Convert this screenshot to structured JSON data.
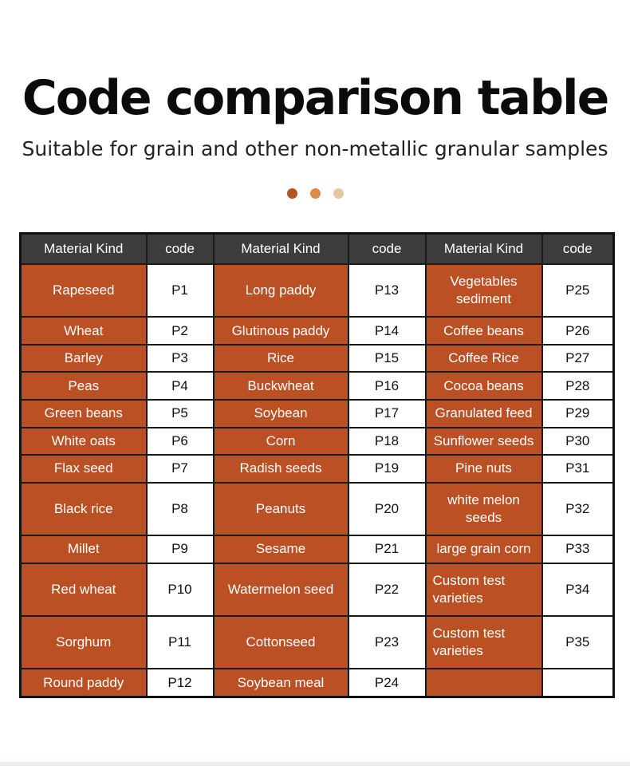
{
  "title": "Code comparison table",
  "subtitle": "Suitable for grain and other non-metallic granular samples",
  "dots": [
    "#b5531f",
    "#df8a46",
    "#e3c6a1"
  ],
  "colors": {
    "header_bg": "#3d3d3d",
    "kind_bg": "#bb5024",
    "code_bg": "#ffffff"
  },
  "table": {
    "headers": [
      "Material Kind",
      "code",
      "Material Kind",
      "code",
      "Material Kind",
      "code"
    ],
    "rows": [
      [
        "Rapeseed",
        "P1",
        "Long paddy",
        "P13",
        "Vegetables sediment",
        "P25"
      ],
      [
        "Wheat",
        "P2",
        "Glutinous paddy",
        "P14",
        "Coffee beans",
        "P26"
      ],
      [
        "Barley",
        "P3",
        "Rice",
        "P15",
        "Coffee Rice",
        "P27"
      ],
      [
        "Peas",
        "P4",
        "Buckwheat",
        "P16",
        "Cocoa beans",
        "P28"
      ],
      [
        "Green beans",
        "P5",
        "Soybean",
        "P17",
        "Granulated feed",
        "P29"
      ],
      [
        "White oats",
        "P6",
        "Corn",
        "P18",
        "Sunflower seeds",
        "P30"
      ],
      [
        "Flax seed",
        "P7",
        "Radish seeds",
        "P19",
        "Pine nuts",
        "P31"
      ],
      [
        "Black rice",
        "P8",
        "Peanuts",
        "P20",
        "white melon seeds",
        "P32"
      ],
      [
        "Millet",
        "P9",
        "Sesame",
        "P21",
        "large grain corn",
        "P33"
      ],
      [
        "Red wheat",
        "P10",
        "Watermelon seed",
        "P22",
        "Custom test varieties",
        "P34"
      ],
      [
        "Sorghum",
        "P11",
        "Cottonseed",
        "P23",
        "Custom test varieties",
        "P35"
      ],
      [
        "Round paddy",
        "P12",
        "Soybean meal",
        "P24",
        "",
        ""
      ]
    ]
  }
}
